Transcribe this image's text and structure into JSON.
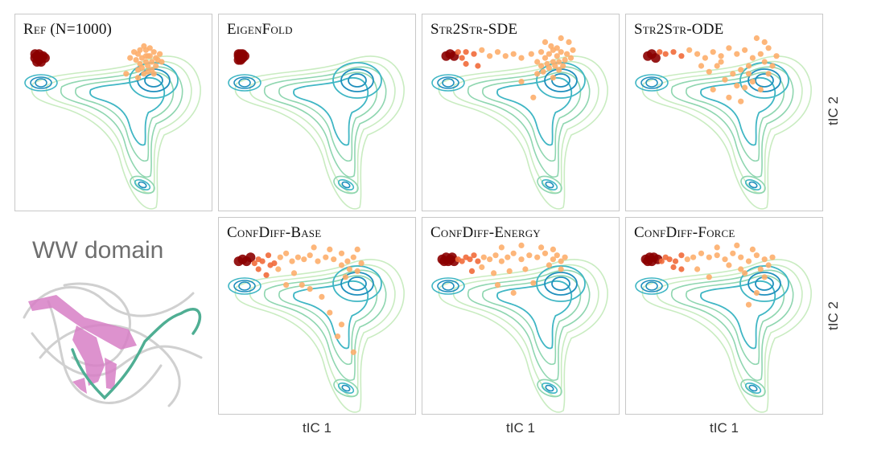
{
  "figure": {
    "protein_label": "WW domain",
    "xlabel": "tIC 1",
    "ylabel": "tIC 2"
  },
  "colors": {
    "contour_outer": "#c9ecc1",
    "contour_mid": "#8fd6b0",
    "contour_inner": "#3fb6c4",
    "contour_core": "#1f8fbd",
    "point_light": "#fdae6b",
    "point_mid": "#f16a3a",
    "point_dark": "#8b0000",
    "protein_helix": "#d77fc6",
    "protein_coil": "#4fae93",
    "protein_ghost": "#d0d0d0"
  },
  "chart_data": [
    {
      "type": "scatter",
      "title": "Ref (N=1000)",
      "xlabel": "",
      "ylabel": "",
      "series": [
        {
          "values": [
            [
              0.1,
              0.78
            ],
            [
              0.11,
              0.79
            ],
            [
              0.12,
              0.77
            ],
            [
              0.13,
              0.78
            ],
            [
              0.11,
              0.76
            ],
            [
              0.14,
              0.79
            ],
            [
              0.12,
              0.8
            ],
            [
              0.1,
              0.8
            ],
            [
              0.13,
              0.76
            ],
            [
              0.15,
              0.78
            ],
            [
              0.62,
              0.8
            ],
            [
              0.64,
              0.78
            ],
            [
              0.66,
              0.82
            ],
            [
              0.68,
              0.79
            ],
            [
              0.7,
              0.81
            ],
            [
              0.63,
              0.75
            ],
            [
              0.67,
              0.74
            ],
            [
              0.72,
              0.77
            ],
            [
              0.65,
              0.84
            ],
            [
              0.69,
              0.72
            ],
            [
              0.61,
              0.77
            ],
            [
              0.71,
              0.74
            ],
            [
              0.66,
              0.76
            ],
            [
              0.64,
              0.73
            ],
            [
              0.68,
              0.83
            ],
            [
              0.73,
              0.8
            ],
            [
              0.6,
              0.81
            ],
            [
              0.67,
              0.79
            ],
            [
              0.56,
              0.7
            ],
            [
              0.62,
              0.68
            ],
            [
              0.58,
              0.78
            ],
            [
              0.7,
              0.7
            ],
            [
              0.65,
              0.7
            ],
            [
              0.69,
              0.76
            ],
            [
              0.63,
              0.82
            ],
            [
              0.66,
              0.79
            ],
            [
              0.71,
              0.78
            ],
            [
              0.62,
              0.72
            ],
            [
              0.67,
              0.71
            ],
            [
              0.74,
              0.76
            ]
          ]
        }
      ]
    },
    {
      "type": "scatter",
      "title": "EigenFold",
      "xlabel": "",
      "ylabel": "",
      "series": [
        {
          "values": [
            [
              0.1,
              0.79
            ],
            [
              0.11,
              0.78
            ],
            [
              0.12,
              0.8
            ],
            [
              0.11,
              0.8
            ],
            [
              0.12,
              0.78
            ],
            [
              0.1,
              0.77
            ],
            [
              0.13,
              0.79
            ],
            [
              0.11,
              0.77
            ],
            [
              0.12,
              0.79
            ],
            [
              0.1,
              0.8
            ]
          ]
        }
      ]
    },
    {
      "type": "scatter",
      "title": "Str2Str-SDE",
      "xlabel": "",
      "ylabel": "",
      "series": [
        {
          "values": [
            [
              0.12,
              0.79
            ],
            [
              0.14,
              0.8
            ],
            [
              0.16,
              0.79
            ],
            [
              0.18,
              0.81
            ],
            [
              0.2,
              0.78
            ],
            [
              0.22,
              0.81
            ],
            [
              0.26,
              0.8
            ],
            [
              0.3,
              0.82
            ],
            [
              0.34,
              0.79
            ],
            [
              0.38,
              0.81
            ],
            [
              0.42,
              0.79
            ],
            [
              0.46,
              0.8
            ],
            [
              0.5,
              0.78
            ],
            [
              0.55,
              0.8
            ],
            [
              0.58,
              0.76
            ],
            [
              0.6,
              0.81
            ],
            [
              0.62,
              0.78
            ],
            [
              0.64,
              0.8
            ],
            [
              0.66,
              0.82
            ],
            [
              0.68,
              0.79
            ],
            [
              0.7,
              0.81
            ],
            [
              0.63,
              0.75
            ],
            [
              0.67,
              0.74
            ],
            [
              0.72,
              0.77
            ],
            [
              0.65,
              0.84
            ],
            [
              0.69,
              0.72
            ],
            [
              0.71,
              0.74
            ],
            [
              0.66,
              0.76
            ],
            [
              0.64,
              0.73
            ],
            [
              0.68,
              0.83
            ],
            [
              0.73,
              0.8
            ],
            [
              0.61,
              0.71
            ],
            [
              0.58,
              0.7
            ],
            [
              0.74,
              0.86
            ],
            [
              0.7,
              0.88
            ],
            [
              0.76,
              0.82
            ],
            [
              0.62,
              0.86
            ],
            [
              0.5,
              0.66
            ],
            [
              0.56,
              0.58
            ],
            [
              0.66,
              0.68
            ],
            [
              0.28,
              0.74
            ],
            [
              0.22,
              0.75
            ],
            [
              0.6,
              0.74
            ],
            [
              0.69,
              0.76
            ],
            [
              0.75,
              0.78
            ]
          ]
        }
      ]
    },
    {
      "type": "scatter",
      "title": "Str2Str-ODE",
      "xlabel": "",
      "ylabel": "",
      "series": [
        {
          "values": [
            [
              0.11,
              0.79
            ],
            [
              0.13,
              0.8
            ],
            [
              0.15,
              0.78
            ],
            [
              0.17,
              0.81
            ],
            [
              0.2,
              0.8
            ],
            [
              0.24,
              0.81
            ],
            [
              0.28,
              0.79
            ],
            [
              0.32,
              0.82
            ],
            [
              0.36,
              0.8
            ],
            [
              0.4,
              0.78
            ],
            [
              0.44,
              0.81
            ],
            [
              0.48,
              0.79
            ],
            [
              0.52,
              0.83
            ],
            [
              0.56,
              0.8
            ],
            [
              0.6,
              0.82
            ],
            [
              0.64,
              0.78
            ],
            [
              0.68,
              0.8
            ],
            [
              0.72,
              0.83
            ],
            [
              0.76,
              0.79
            ],
            [
              0.7,
              0.86
            ],
            [
              0.66,
              0.88
            ],
            [
              0.62,
              0.74
            ],
            [
              0.58,
              0.72
            ],
            [
              0.54,
              0.7
            ],
            [
              0.5,
              0.67
            ],
            [
              0.46,
              0.74
            ],
            [
              0.42,
              0.71
            ],
            [
              0.56,
              0.64
            ],
            [
              0.6,
              0.63
            ],
            [
              0.64,
              0.66
            ],
            [
              0.68,
              0.62
            ],
            [
              0.72,
              0.7
            ],
            [
              0.38,
              0.74
            ],
            [
              0.52,
              0.58
            ],
            [
              0.58,
              0.56
            ],
            [
              0.44,
              0.62
            ],
            [
              0.7,
              0.76
            ],
            [
              0.74,
              0.74
            ],
            [
              0.62,
              0.7
            ],
            [
              0.48,
              0.76
            ]
          ]
        }
      ]
    },
    {
      "type": "scatter",
      "title": "ConfDiff-Base",
      "xlabel": "",
      "ylabel": "",
      "series": [
        {
          "values": [
            [
              0.1,
              0.78
            ],
            [
              0.12,
              0.79
            ],
            [
              0.14,
              0.78
            ],
            [
              0.16,
              0.8
            ],
            [
              0.18,
              0.77
            ],
            [
              0.2,
              0.79
            ],
            [
              0.22,
              0.78
            ],
            [
              0.25,
              0.81
            ],
            [
              0.28,
              0.77
            ],
            [
              0.31,
              0.8
            ],
            [
              0.34,
              0.82
            ],
            [
              0.37,
              0.78
            ],
            [
              0.4,
              0.8
            ],
            [
              0.43,
              0.79
            ],
            [
              0.46,
              0.81
            ],
            [
              0.5,
              0.78
            ],
            [
              0.54,
              0.8
            ],
            [
              0.58,
              0.79
            ],
            [
              0.62,
              0.82
            ],
            [
              0.65,
              0.78
            ],
            [
              0.68,
              0.8
            ],
            [
              0.72,
              0.77
            ],
            [
              0.66,
              0.74
            ],
            [
              0.7,
              0.73
            ],
            [
              0.62,
              0.76
            ],
            [
              0.56,
              0.84
            ],
            [
              0.48,
              0.85
            ],
            [
              0.38,
              0.72
            ],
            [
              0.3,
              0.74
            ],
            [
              0.24,
              0.71
            ],
            [
              0.42,
              0.66
            ],
            [
              0.52,
              0.6
            ],
            [
              0.56,
              0.52
            ],
            [
              0.62,
              0.46
            ],
            [
              0.6,
              0.4
            ],
            [
              0.68,
              0.32
            ],
            [
              0.64,
              0.7
            ],
            [
              0.7,
              0.84
            ],
            [
              0.34,
              0.66
            ],
            [
              0.46,
              0.64
            ],
            [
              0.26,
              0.76
            ],
            [
              0.2,
              0.74
            ]
          ]
        }
      ]
    },
    {
      "type": "scatter",
      "title": "ConfDiff-Energy",
      "xlabel": "",
      "ylabel": "",
      "series": [
        {
          "values": [
            [
              0.1,
              0.79
            ],
            [
              0.11,
              0.78
            ],
            [
              0.12,
              0.8
            ],
            [
              0.13,
              0.78
            ],
            [
              0.14,
              0.79
            ],
            [
              0.15,
              0.8
            ],
            [
              0.16,
              0.78
            ],
            [
              0.18,
              0.79
            ],
            [
              0.2,
              0.78
            ],
            [
              0.22,
              0.8
            ],
            [
              0.24,
              0.79
            ],
            [
              0.26,
              0.81
            ],
            [
              0.28,
              0.78
            ],
            [
              0.31,
              0.8
            ],
            [
              0.34,
              0.79
            ],
            [
              0.37,
              0.81
            ],
            [
              0.4,
              0.78
            ],
            [
              0.43,
              0.8
            ],
            [
              0.46,
              0.82
            ],
            [
              0.5,
              0.79
            ],
            [
              0.54,
              0.81
            ],
            [
              0.58,
              0.8
            ],
            [
              0.62,
              0.82
            ],
            [
              0.66,
              0.79
            ],
            [
              0.68,
              0.81
            ],
            [
              0.7,
              0.78
            ],
            [
              0.64,
              0.76
            ],
            [
              0.72,
              0.8
            ],
            [
              0.6,
              0.85
            ],
            [
              0.5,
              0.86
            ],
            [
              0.4,
              0.85
            ],
            [
              0.3,
              0.75
            ],
            [
              0.36,
              0.72
            ],
            [
              0.44,
              0.73
            ],
            [
              0.52,
              0.74
            ],
            [
              0.38,
              0.66
            ],
            [
              0.46,
              0.62
            ],
            [
              0.56,
              0.67
            ],
            [
              0.25,
              0.73
            ],
            [
              0.66,
              0.84
            ],
            [
              0.7,
              0.74
            ]
          ]
        }
      ]
    },
    {
      "type": "scatter",
      "title": "ConfDiff-Force",
      "xlabel": "",
      "ylabel": "",
      "series": [
        {
          "values": [
            [
              0.1,
              0.79
            ],
            [
              0.11,
              0.78
            ],
            [
              0.12,
              0.8
            ],
            [
              0.13,
              0.78
            ],
            [
              0.14,
              0.8
            ],
            [
              0.16,
              0.79
            ],
            [
              0.18,
              0.78
            ],
            [
              0.2,
              0.8
            ],
            [
              0.22,
              0.79
            ],
            [
              0.25,
              0.78
            ],
            [
              0.28,
              0.81
            ],
            [
              0.31,
              0.79
            ],
            [
              0.34,
              0.8
            ],
            [
              0.38,
              0.82
            ],
            [
              0.42,
              0.8
            ],
            [
              0.46,
              0.81
            ],
            [
              0.5,
              0.79
            ],
            [
              0.54,
              0.82
            ],
            [
              0.58,
              0.8
            ],
            [
              0.62,
              0.78
            ],
            [
              0.66,
              0.81
            ],
            [
              0.7,
              0.79
            ],
            [
              0.72,
              0.76
            ],
            [
              0.68,
              0.74
            ],
            [
              0.64,
              0.84
            ],
            [
              0.56,
              0.86
            ],
            [
              0.46,
              0.85
            ],
            [
              0.36,
              0.74
            ],
            [
              0.28,
              0.74
            ],
            [
              0.42,
              0.7
            ],
            [
              0.6,
              0.72
            ],
            [
              0.66,
              0.62
            ],
            [
              0.62,
              0.56
            ],
            [
              0.7,
              0.7
            ],
            [
              0.52,
              0.76
            ],
            [
              0.74,
              0.8
            ],
            [
              0.24,
              0.75
            ],
            [
              0.58,
              0.74
            ]
          ]
        }
      ]
    }
  ]
}
